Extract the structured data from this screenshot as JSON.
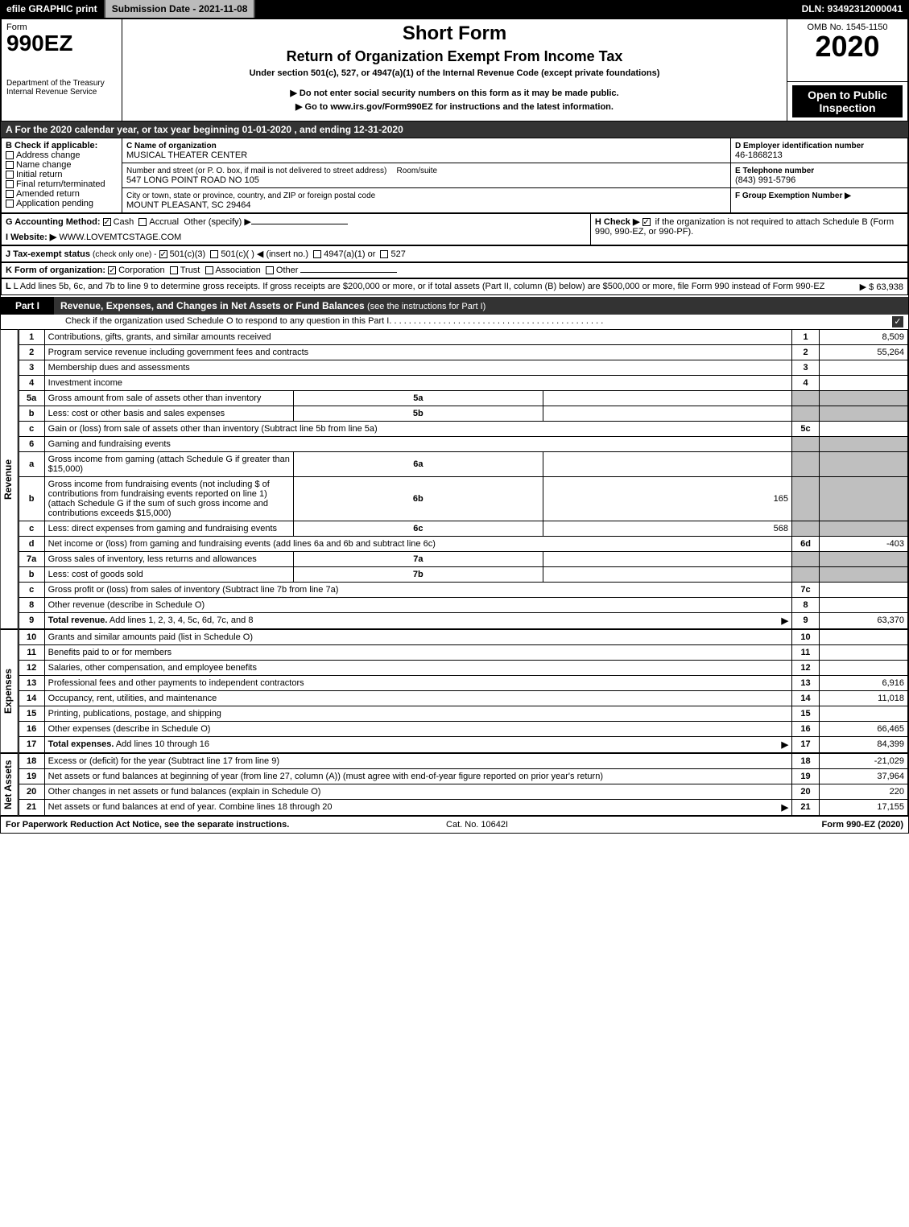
{
  "colors": {
    "black": "#000000",
    "darkgray": "#333333",
    "midgray": "#bfbfbf",
    "lightgray": "#bbbbbb",
    "white": "#ffffff"
  },
  "topbar": {
    "efile": "efile GRAPHIC print",
    "submission": "Submission Date - 2021-11-08",
    "dln": "DLN: 93492312000041"
  },
  "header": {
    "form_label": "Form",
    "form_no": "990EZ",
    "dept": "Department of the Treasury",
    "irs": "Internal Revenue Service",
    "title": "Short Form",
    "subtitle": "Return of Organization Exempt From Income Tax",
    "under": "Under section 501(c), 527, or 4947(a)(1) of the Internal Revenue Code (except private foundations)",
    "warn": "Do not enter social security numbers on this form as it may be made public.",
    "goto": "Go to www.irs.gov/Form990EZ for instructions and the latest information.",
    "omb": "OMB No. 1545-1150",
    "year": "2020",
    "public": "Open to Public Inspection"
  },
  "periodbar": "A For the 2020 calendar year, or tax year beginning 01-01-2020 , and ending 12-31-2020",
  "boxB": {
    "label": "B Check if applicable:",
    "items": [
      "Address change",
      "Name change",
      "Initial return",
      "Final return/terminated",
      "Amended return",
      "Application pending"
    ]
  },
  "boxC": {
    "name_label": "C Name of organization",
    "name": "MUSICAL THEATER CENTER",
    "street_label": "Number and street (or P. O. box, if mail is not delivered to street address)",
    "street": "547 LONG POINT ROAD NO 105",
    "room_label": "Room/suite",
    "city_label": "City or town, state or province, country, and ZIP or foreign postal code",
    "city": "MOUNT PLEASANT, SC  29464"
  },
  "boxD": {
    "label": "D Employer identification number",
    "value": "46-1868213"
  },
  "boxE": {
    "label": "E Telephone number",
    "value": "(843) 991-5796"
  },
  "boxF": {
    "label": "F Group Exemption Number  ▶"
  },
  "lineG": {
    "label": "G Accounting Method:",
    "opts": [
      "Cash",
      "Accrual"
    ],
    "other": "Other (specify) ▶"
  },
  "lineH": {
    "label": "H  Check ▶",
    "text": "if the organization is not required to attach Schedule B (Form 990, 990-EZ, or 990-PF)."
  },
  "lineI": {
    "label": "I Website: ▶",
    "value": "WWW.LOVEMTCSTAGE.COM"
  },
  "lineJ": {
    "label": "J Tax-exempt status",
    "note": "(check only one) -",
    "opts": [
      "501(c)(3)",
      "501(c)(  ) ◀ (insert no.)",
      "4947(a)(1) or",
      "527"
    ]
  },
  "lineK": {
    "label": "K Form of organization:",
    "opts": [
      "Corporation",
      "Trust",
      "Association",
      "Other"
    ]
  },
  "lineL": {
    "text": "L Add lines 5b, 6c, and 7b to line 9 to determine gross receipts. If gross receipts are $200,000 or more, or if total assets (Part II, column (B) below) are $500,000 or more, file Form 990 instead of Form 990-EZ",
    "amount": "▶ $ 63,938"
  },
  "partI": {
    "tag": "Part I",
    "title": "Revenue, Expenses, and Changes in Net Assets or Fund Balances",
    "note": "(see the instructions for Part I)",
    "sub": "Check if the organization used Schedule O to respond to any question in this Part I"
  },
  "sections": {
    "revenue": "Revenue",
    "expenses": "Expenses",
    "netassets": "Net Assets"
  },
  "rows": [
    {
      "n": "1",
      "d": "Contributions, gifts, grants, and similar amounts received",
      "r": "1",
      "a": "8,509"
    },
    {
      "n": "2",
      "d": "Program service revenue including government fees and contracts",
      "r": "2",
      "a": "55,264"
    },
    {
      "n": "3",
      "d": "Membership dues and assessments",
      "r": "3",
      "a": ""
    },
    {
      "n": "4",
      "d": "Investment income",
      "r": "4",
      "a": ""
    },
    {
      "n": "5a",
      "d": "Gross amount from sale of assets other than inventory",
      "mid": "5a",
      "mval": "",
      "shade": true
    },
    {
      "n": "b",
      "d": "Less: cost or other basis and sales expenses",
      "mid": "5b",
      "mval": "",
      "shade": true
    },
    {
      "n": "c",
      "d": "Gain or (loss) from sale of assets other than inventory (Subtract line 5b from line 5a)",
      "r": "5c",
      "a": ""
    },
    {
      "n": "6",
      "d": "Gaming and fundraising events",
      "shade": true,
      "noamt": true
    },
    {
      "n": "a",
      "d": "Gross income from gaming (attach Schedule G if greater than $15,000)",
      "mid": "6a",
      "mval": "",
      "shade": true
    },
    {
      "n": "b",
      "d": "Gross income from fundraising events (not including $                    of contributions from fundraising events reported on line 1) (attach Schedule G if the sum of such gross income and contributions exceeds $15,000)",
      "mid": "6b",
      "mval": "165",
      "shade": true
    },
    {
      "n": "c",
      "d": "Less: direct expenses from gaming and fundraising events",
      "mid": "6c",
      "mval": "568",
      "shade": true
    },
    {
      "n": "d",
      "d": "Net income or (loss) from gaming and fundraising events (add lines 6a and 6b and subtract line 6c)",
      "r": "6d",
      "a": "-403"
    },
    {
      "n": "7a",
      "d": "Gross sales of inventory, less returns and allowances",
      "mid": "7a",
      "mval": "",
      "shade": true
    },
    {
      "n": "b",
      "d": "Less: cost of goods sold",
      "mid": "7b",
      "mval": "",
      "shade": true
    },
    {
      "n": "c",
      "d": "Gross profit or (loss) from sales of inventory (Subtract line 7b from line 7a)",
      "r": "7c",
      "a": ""
    },
    {
      "n": "8",
      "d": "Other revenue (describe in Schedule O)",
      "r": "8",
      "a": ""
    },
    {
      "n": "9",
      "d": "Total revenue. Add lines 1, 2, 3, 4, 5c, 6d, 7c, and 8",
      "r": "9",
      "a": "63,370",
      "bold": true,
      "arrow": true
    }
  ],
  "exp_rows": [
    {
      "n": "10",
      "d": "Grants and similar amounts paid (list in Schedule O)",
      "r": "10",
      "a": ""
    },
    {
      "n": "11",
      "d": "Benefits paid to or for members",
      "r": "11",
      "a": ""
    },
    {
      "n": "12",
      "d": "Salaries, other compensation, and employee benefits",
      "r": "12",
      "a": ""
    },
    {
      "n": "13",
      "d": "Professional fees and other payments to independent contractors",
      "r": "13",
      "a": "6,916"
    },
    {
      "n": "14",
      "d": "Occupancy, rent, utilities, and maintenance",
      "r": "14",
      "a": "11,018"
    },
    {
      "n": "15",
      "d": "Printing, publications, postage, and shipping",
      "r": "15",
      "a": ""
    },
    {
      "n": "16",
      "d": "Other expenses (describe in Schedule O)",
      "r": "16",
      "a": "66,465"
    },
    {
      "n": "17",
      "d": "Total expenses. Add lines 10 through 16",
      "r": "17",
      "a": "84,399",
      "bold": true,
      "arrow": true
    }
  ],
  "na_rows": [
    {
      "n": "18",
      "d": "Excess or (deficit) for the year (Subtract line 17 from line 9)",
      "r": "18",
      "a": "-21,029"
    },
    {
      "n": "19",
      "d": "Net assets or fund balances at beginning of year (from line 27, column (A)) (must agree with end-of-year figure reported on prior year's return)",
      "r": "19",
      "a": "37,964"
    },
    {
      "n": "20",
      "d": "Other changes in net assets or fund balances (explain in Schedule O)",
      "r": "20",
      "a": "220"
    },
    {
      "n": "21",
      "d": "Net assets or fund balances at end of year. Combine lines 18 through 20",
      "r": "21",
      "a": "17,155",
      "arrow": true
    }
  ],
  "footer": {
    "left": "For Paperwork Reduction Act Notice, see the separate instructions.",
    "center": "Cat. No. 10642I",
    "right": "Form 990-EZ (2020)"
  }
}
